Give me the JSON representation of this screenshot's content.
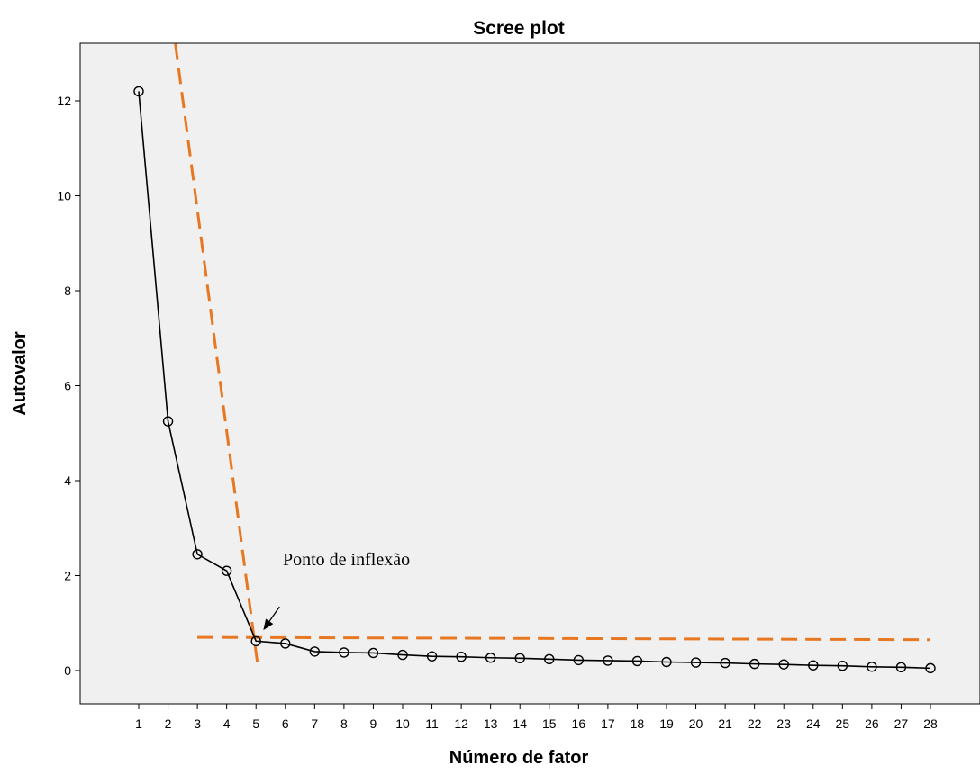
{
  "chart_data": {
    "type": "line",
    "title": "Scree plot",
    "xlabel": "Número de fator",
    "ylabel": "Autovalor",
    "x": [
      1,
      2,
      3,
      4,
      5,
      6,
      7,
      8,
      9,
      10,
      11,
      12,
      13,
      14,
      15,
      16,
      17,
      18,
      19,
      20,
      21,
      22,
      23,
      24,
      25,
      26,
      27,
      28
    ],
    "series": [
      {
        "values": [
          12.2,
          5.25,
          2.45,
          2.1,
          0.62,
          0.57,
          0.4,
          0.38,
          0.37,
          0.33,
          0.3,
          0.29,
          0.27,
          0.26,
          0.24,
          0.22,
          0.21,
          0.2,
          0.18,
          0.17,
          0.16,
          0.14,
          0.13,
          0.11,
          0.1,
          0.08,
          0.07,
          0.05
        ]
      }
    ],
    "xlim": [
      0,
      29
    ],
    "ylim": [
      -0.8,
      13.2
    ],
    "yticks": [
      0,
      2,
      4,
      6,
      8,
      10,
      12
    ],
    "xticks": [
      1,
      2,
      3,
      4,
      5,
      6,
      7,
      8,
      9,
      10,
      11,
      12,
      13,
      14,
      15,
      16,
      17,
      18,
      19,
      20,
      21,
      22,
      23,
      24,
      25,
      26,
      27,
      28
    ],
    "marker": "open-circle",
    "line_color": "#000000",
    "plot_background": "#f0f0f0",
    "guide_lines": [
      {
        "from": [
          2.25,
          13.2
        ],
        "to": [
          5.05,
          0.15
        ],
        "color": "#e87722",
        "style": "dashed"
      },
      {
        "from": [
          3,
          0.7
        ],
        "to": [
          28,
          0.65
        ],
        "color": "#e87722",
        "style": "dashed"
      }
    ],
    "annotation": {
      "text": "Ponto de inflexão",
      "arrow_target": [
        5.25,
        0.85
      ]
    }
  }
}
